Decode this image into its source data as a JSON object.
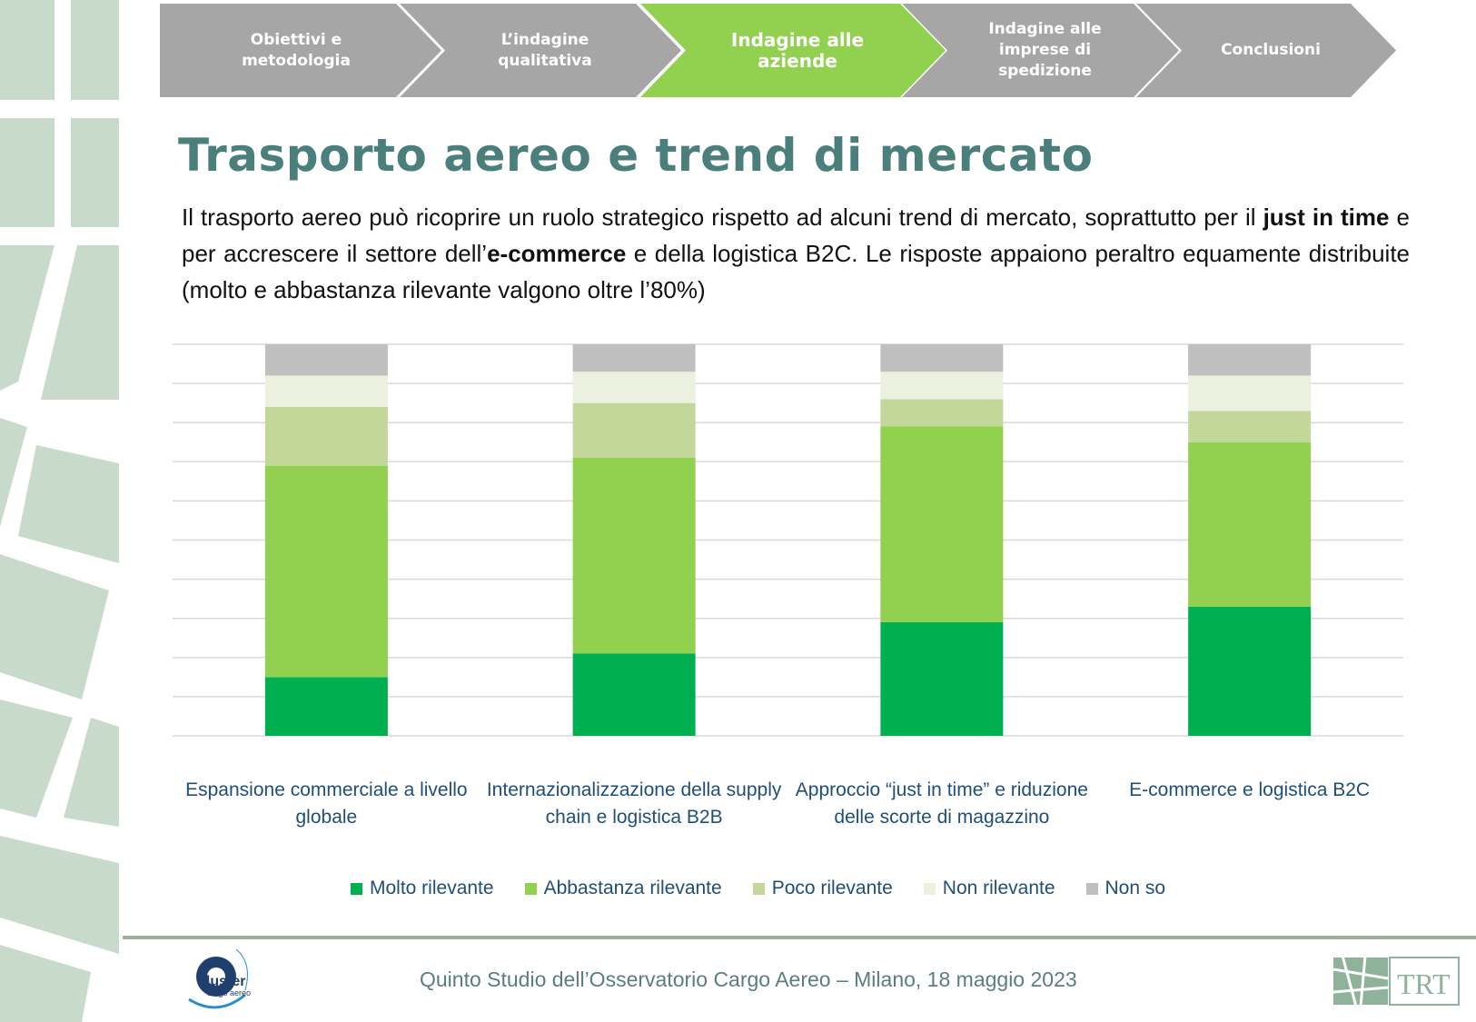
{
  "nav": [
    {
      "label": "Obiettivi e metodologia",
      "active": false
    },
    {
      "label": "L’indagine qualitativa",
      "active": false
    },
    {
      "label": "Indagine alle aziende",
      "active": true
    },
    {
      "label": "Indagine alle imprese di spedizione",
      "active": false
    },
    {
      "label": "Conclusioni",
      "active": false
    }
  ],
  "colors": {
    "nav_inactive": "#a6a6a6",
    "nav_active": "#92d050",
    "title": "#4a7f7c"
  },
  "title": "Trasporto aereo e trend di mercato",
  "intro": {
    "p1": "Il trasporto aereo può ricoprire un ruolo strategico rispetto ad alcuni trend di mercato, soprattutto per il ",
    "b1": "just in time",
    "p2": " e per accrescere il settore dell’",
    "b2": "e-commerce",
    "p3": " e della logistica B2C. Le risposte appaiono peraltro equamente distribuite (molto e abbastanza rilevante valgono oltre l’80%)"
  },
  "chart_data": {
    "type": "bar",
    "stacked": true,
    "categories": [
      "Espansione commerciale a livello globale",
      "Internazionalizzazione della supply chain e logistica B2B",
      "Approccio “just in time” e riduzione delle scorte di magazzino",
      "E-commerce e logistica B2C"
    ],
    "series": [
      {
        "name": "Molto rilevante",
        "color": "#00b050",
        "values": [
          15,
          21,
          29,
          33
        ]
      },
      {
        "name": "Abbastanza rilevante",
        "color": "#92d050",
        "values": [
          54,
          50,
          50,
          42
        ]
      },
      {
        "name": "Poco rilevante",
        "color": "#c4d79b",
        "values": [
          15,
          14,
          7,
          8
        ]
      },
      {
        "name": "Non rilevante",
        "color": "#ebf1de",
        "values": [
          8,
          8,
          7,
          9
        ]
      },
      {
        "name": "Non so",
        "color": "#bfbfbf",
        "values": [
          8,
          7,
          7,
          8
        ]
      }
    ],
    "ylim": [
      0,
      100
    ],
    "grid": true,
    "legend": "bottom"
  },
  "footer": {
    "text": "Quinto Studio dell’Osservatorio Cargo Aereo – Milano, 18 maggio 2023",
    "logo_left": "cluster cargo aereo",
    "logo_right": "TRT"
  }
}
